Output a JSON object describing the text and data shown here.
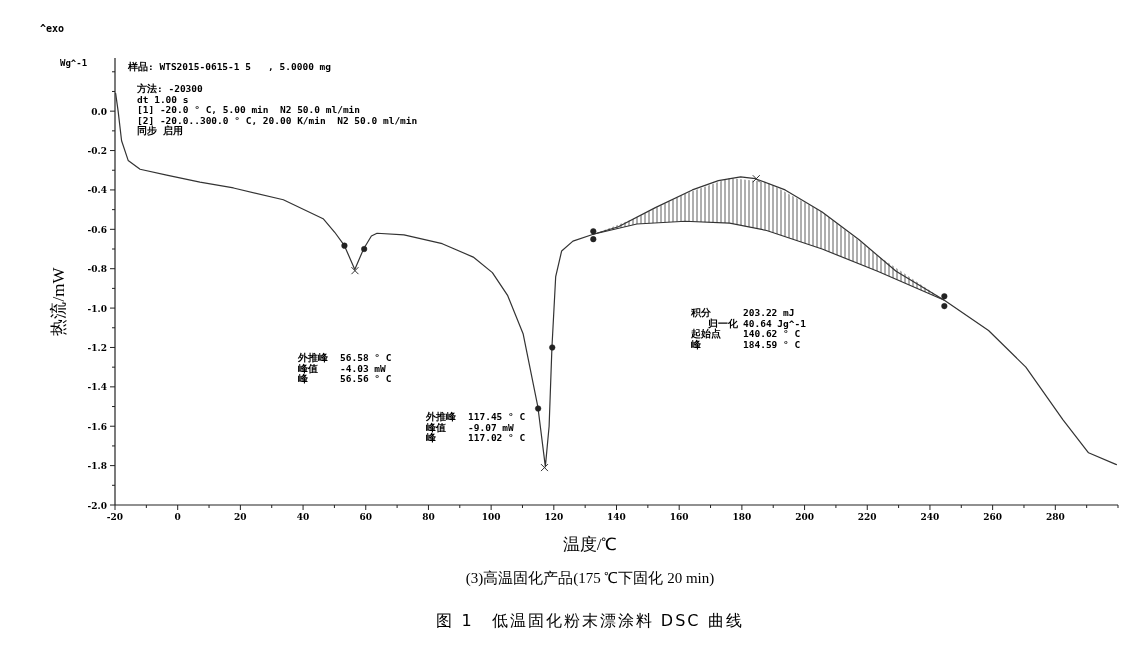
{
  "chart_data": {
    "type": "line",
    "title": "图 1　低温固化粉末漂涂料 DSC 曲线",
    "subtitle": "(3)高温固化产品(175 ℃下固化 20 min)",
    "xlabel": "温度/℃",
    "ylabel": "热流/mW",
    "xlim": [
      -20,
      300
    ],
    "ylim": [
      -2.0,
      0.27
    ],
    "xticks": [
      -20,
      {
        "value": -10,
        "label": null
      },
      0,
      {
        "value": 10,
        "label": null
      },
      20,
      {
        "value": 30,
        "label": null
      },
      40,
      {
        "value": 50,
        "label": null
      },
      60,
      {
        "value": 70,
        "label": null
      },
      80,
      {
        "value": 90,
        "label": null
      },
      100,
      {
        "value": 110,
        "label": null
      },
      120,
      {
        "value": 130,
        "label": null
      },
      140,
      {
        "value": 150,
        "label": null
      },
      160,
      {
        "value": 170,
        "label": null
      },
      180,
      {
        "value": 190,
        "label": null
      },
      200,
      {
        "value": 210,
        "label": null
      },
      220,
      {
        "value": 230,
        "label": null
      },
      240,
      {
        "value": 250,
        "label": null
      },
      260,
      {
        "value": 270,
        "label": null
      },
      280,
      {
        "value": 290,
        "label": null
      },
      {
        "value": 300,
        "label": null
      }
    ],
    "yticks": [
      {
        "value": -2.0,
        "label": "-2.0"
      },
      {
        "value": -1.9,
        "label": null
      },
      {
        "value": -1.8,
        "label": "-1.8"
      },
      {
        "value": -1.7,
        "label": null
      },
      {
        "value": -1.6,
        "label": "-1.6"
      },
      {
        "value": -1.5,
        "label": null
      },
      {
        "value": -1.4,
        "label": "-1.4"
      },
      {
        "value": -1.3,
        "label": null
      },
      {
        "value": -1.2,
        "label": "-1.2"
      },
      {
        "value": -1.1,
        "label": null
      },
      {
        "value": -1.0,
        "label": "-1.0"
      },
      {
        "value": -0.9,
        "label": null
      },
      {
        "value": -0.8,
        "label": "-0.8"
      },
      {
        "value": -0.7,
        "label": null
      },
      {
        "value": -0.6,
        "label": "-0.6"
      },
      {
        "value": -0.5,
        "label": null
      },
      {
        "value": -0.4,
        "label": "-0.4"
      },
      {
        "value": -0.3,
        "label": null
      },
      {
        "value": -0.2,
        "label": "-0.2"
      },
      {
        "value": -0.1,
        "label": null
      },
      {
        "value": 0,
        "label": "0.0"
      },
      {
        "value": 0.1,
        "label": null
      },
      {
        "value": 0.2,
        "label": null
      }
    ],
    "series": [
      {
        "color": "#333333",
        "x": [
          -19.8,
          -19,
          -17.9,
          -15.8,
          -12,
          -3.5,
          7.1,
          17.8,
          33.7,
          46.4,
          50.1,
          53.2,
          56.5,
          59.3,
          61.8,
          63.6,
          72.2,
          84.4,
          94.3,
          100.4,
          105.3,
          110.2,
          114.9,
          117.3,
          118.5,
          119.4,
          120.6,
          122.5,
          126.1,
          132.6,
          140.6,
          152.4,
          164.2,
          172.5,
          179.6,
          184.3,
          193.8,
          205.6,
          217.4,
          229.2,
          244.6,
          258.7,
          270.6,
          282.4,
          290.6,
          299.5
        ],
        "values": [
          0.09,
          0.0,
          -0.15,
          -0.25,
          -0.295,
          -0.325,
          -0.36,
          -0.39,
          -0.45,
          -0.546,
          -0.615,
          -0.683,
          -0.804,
          -0.7,
          -0.634,
          -0.62,
          -0.628,
          -0.673,
          -0.741,
          -0.82,
          -0.937,
          -1.13,
          -1.5,
          -1.805,
          -1.6,
          -1.2,
          -0.84,
          -0.71,
          -0.66,
          -0.625,
          -0.587,
          -0.49,
          -0.4,
          -0.353,
          -0.334,
          -0.343,
          -0.4,
          -0.512,
          -0.653,
          -0.813,
          -0.96,
          -1.114,
          -1.3,
          -1.566,
          -1.735,
          -1.795
        ]
      },
      {
        "color": "#333333",
        "x": [
          132.6,
          146.5,
          161.9,
          176.1,
          187.9,
          205.6,
          223.3,
          244.6
        ],
        "values": [
          -0.625,
          -0.573,
          -0.559,
          -0.569,
          -0.606,
          -0.7,
          -0.813,
          -0.96
        ],
        "lower": [
          -0.625,
          -0.573,
          -0.559,
          -0.569,
          -0.606,
          -0.7,
          -0.813,
          -0.96
        ],
        "upper": [
          -0.625,
          -0.54,
          -0.42,
          -0.34,
          -0.36,
          -0.512,
          -0.733,
          -0.96
        ]
      },
      {
        "type": "scatter",
        "marker": "cross",
        "color": "#333333",
        "x": [
          56.56,
          117.02,
          184.59
        ],
        "values": [
          -0.81,
          -1.81,
          -0.343
        ]
      },
      {
        "type": "scatter",
        "marker": "circle",
        "color": "#222222",
        "x": [
          53.2,
          59.5,
          115,
          119.5,
          132.6,
          132.6,
          244.6,
          244.6
        ],
        "values": [
          -0.683,
          -0.7,
          -1.51,
          -1.2,
          -0.61,
          -0.65,
          -0.94,
          -0.99
        ]
      }
    ],
    "annotations": [
      "^exo",
      "Wg^-1",
      "样品: WTS2015-0615-1 5   , 5.0000 mg",
      "方法: -20300\ndt 1.00 s\n[1] -20.0 ° C, 5.00 min  N2 50.0 ml/min\n[2] -20.0..300.0 ° C, 20.00 K/min  N2 50.0 ml/min\n同步 启用",
      "外推峰\t56.58 ° C\n峰值\t-4.03 mW\n峰\t56.56 ° C",
      "外推峰\t117.45 ° C\n峰值\t-9.07 mW\n峰\t117.02 ° C",
      "积分\t203.22 mJ\n   归一化\t40.64 Jg^-1\n起始点\t140.62 ° C\n峰\t184.59 ° C"
    ]
  }
}
